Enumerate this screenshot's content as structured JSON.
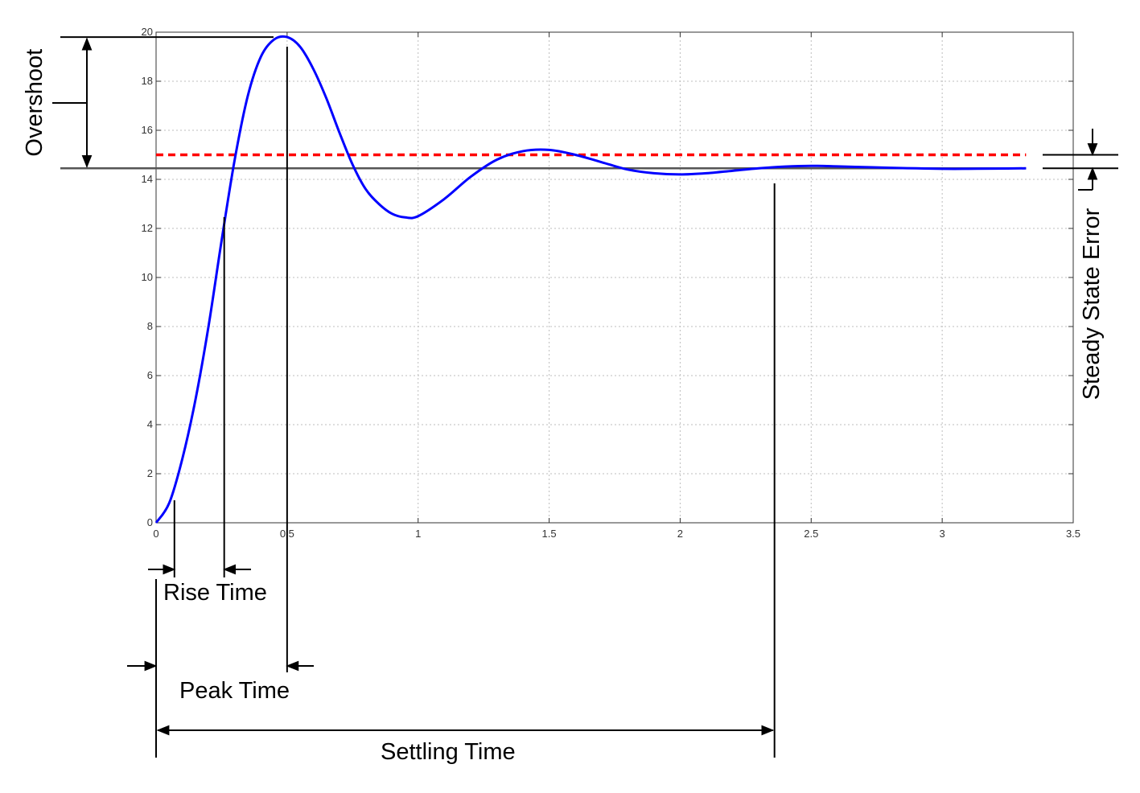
{
  "chart_data": {
    "type": "line",
    "xlim": [
      0,
      3.5
    ],
    "ylim": [
      0,
      20
    ],
    "x_ticks": [
      0,
      0.5,
      1,
      1.5,
      2,
      2.5,
      3,
      3.5
    ],
    "x_tick_labels": [
      "0",
      "0.5",
      "1",
      "1.5",
      "2",
      "2.5",
      "3",
      "3.5"
    ],
    "y_ticks": [
      0,
      2,
      4,
      6,
      8,
      10,
      12,
      14,
      16,
      18,
      20
    ],
    "y_tick_labels": [
      "0",
      "2",
      "4",
      "6",
      "8",
      "10",
      "12",
      "14",
      "16",
      "18",
      "20"
    ],
    "grid": true,
    "series": [
      {
        "role": "response",
        "color": "#0000ff",
        "style": "solid",
        "x": [
          0,
          0.05,
          0.1,
          0.15,
          0.2,
          0.25,
          0.3,
          0.35,
          0.4,
          0.45,
          0.5,
          0.55,
          0.6,
          0.65,
          0.7,
          0.75,
          0.8,
          0.85,
          0.9,
          0.95,
          1.0,
          1.1,
          1.2,
          1.3,
          1.4,
          1.5,
          1.6,
          1.7,
          1.8,
          1.9,
          2.0,
          2.1,
          2.2,
          2.3,
          2.4,
          2.5,
          2.6,
          2.7,
          2.8,
          2.9,
          3.0,
          3.1,
          3.2,
          3.32
        ],
        "y": [
          0,
          0.8,
          2.6,
          5.0,
          8.0,
          11.5,
          14.8,
          17.4,
          19.0,
          19.7,
          19.8,
          19.4,
          18.5,
          17.3,
          15.9,
          14.6,
          13.6,
          13.0,
          12.6,
          12.45,
          12.5,
          13.2,
          14.1,
          14.8,
          15.15,
          15.2,
          15.0,
          14.7,
          14.4,
          14.25,
          14.2,
          14.25,
          14.35,
          14.45,
          14.52,
          14.55,
          14.53,
          14.5,
          14.47,
          14.45,
          14.43,
          14.43,
          14.44,
          14.45
        ]
      },
      {
        "role": "reference",
        "color": "#ff0000",
        "style": "dashed",
        "x": [
          0,
          3.32
        ],
        "y": [
          15,
          15
        ]
      },
      {
        "role": "steady-state",
        "color": "#555555",
        "style": "solid",
        "x": [
          0,
          3.32
        ],
        "y": [
          14.45,
          14.45
        ]
      }
    ],
    "annotations": {
      "overshoot": {
        "label": "Overshoot",
        "from": 14.45,
        "to": 19.8
      },
      "rise_time": {
        "label": "Rise Time",
        "from": 0.07,
        "to": 0.26
      },
      "peak_time": {
        "label": "Peak Time",
        "from": 0,
        "to": 0.5
      },
      "settling_time": {
        "label": "Settling Time",
        "from": 0,
        "to": 2.36
      },
      "steady_state_error": {
        "label": "Steady State Error",
        "from": 14.45,
        "to": 15
      }
    }
  }
}
